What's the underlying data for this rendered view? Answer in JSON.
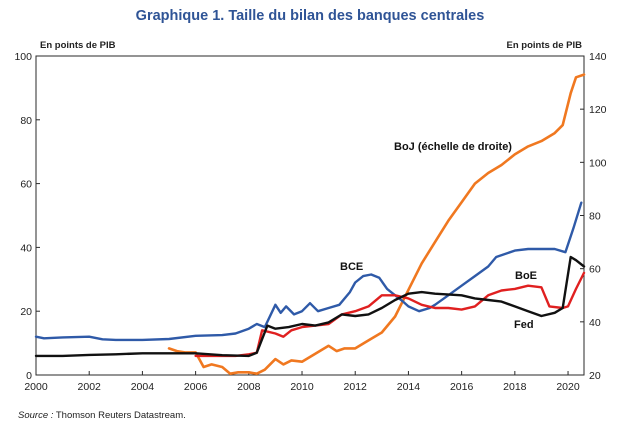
{
  "chart_data": {
    "type": "line",
    "title": "Graphique 1. Taille du bilan des banques centrales",
    "ylabel_left": "En points de PIB",
    "ylabel_right": "En points de PIB",
    "ylim_left": [
      0,
      100
    ],
    "ylim_right": [
      20,
      140
    ],
    "xlim": [
      2000,
      2020.6
    ],
    "x_ticks": [
      "2000",
      "2002",
      "2004",
      "2006",
      "2008",
      "2010",
      "2012",
      "2014",
      "2016",
      "2018",
      "2020"
    ],
    "y_left_ticks": [
      "0",
      "20",
      "40",
      "60",
      "80",
      "100"
    ],
    "y_right_ticks": [
      "20",
      "40",
      "60",
      "80",
      "100",
      "120",
      "140"
    ],
    "grid": false,
    "series": [
      {
        "name": "BCE",
        "axis": "left",
        "color": "#2f5aa8",
        "points": [
          [
            2000,
            12
          ],
          [
            2000.3,
            11.5
          ],
          [
            2001,
            11.8
          ],
          [
            2002,
            12
          ],
          [
            2002.5,
            11.2
          ],
          [
            2003,
            11
          ],
          [
            2004,
            11
          ],
          [
            2005,
            11.3
          ],
          [
            2006,
            12.3
          ],
          [
            2007,
            12.5
          ],
          [
            2007.5,
            13
          ],
          [
            2008,
            14.5
          ],
          [
            2008.3,
            16
          ],
          [
            2008.6,
            15
          ],
          [
            2009,
            22
          ],
          [
            2009.2,
            19.5
          ],
          [
            2009.4,
            21.5
          ],
          [
            2009.7,
            19
          ],
          [
            2010,
            20
          ],
          [
            2010.3,
            22.5
          ],
          [
            2010.6,
            20
          ],
          [
            2011,
            21
          ],
          [
            2011.4,
            22
          ],
          [
            2011.8,
            26
          ],
          [
            2012,
            29
          ],
          [
            2012.3,
            31
          ],
          [
            2012.6,
            31.5
          ],
          [
            2012.9,
            30.5
          ],
          [
            2013.2,
            27
          ],
          [
            2013.5,
            25
          ],
          [
            2013.8,
            23
          ],
          [
            2014,
            21.5
          ],
          [
            2014.4,
            20
          ],
          [
            2014.8,
            21
          ],
          [
            2015,
            22
          ],
          [
            2015.5,
            25
          ],
          [
            2016,
            28
          ],
          [
            2016.5,
            31
          ],
          [
            2017,
            34
          ],
          [
            2017.3,
            37
          ],
          [
            2018,
            39
          ],
          [
            2018.5,
            39.5
          ],
          [
            2019,
            39.5
          ],
          [
            2019.5,
            39.5
          ],
          [
            2019.9,
            38.5
          ],
          [
            2020.2,
            46
          ],
          [
            2020.5,
            54
          ]
        ]
      },
      {
        "name": "BoE",
        "axis": "left",
        "color": "#e02020",
        "points": [
          [
            2006,
            6
          ],
          [
            2007,
            6
          ],
          [
            2007.5,
            6
          ],
          [
            2008,
            6.5
          ],
          [
            2008.3,
            7
          ],
          [
            2008.5,
            14
          ],
          [
            2009,
            13
          ],
          [
            2009.3,
            12
          ],
          [
            2009.6,
            14
          ],
          [
            2010,
            15
          ],
          [
            2010.5,
            15.5
          ],
          [
            2011,
            16
          ],
          [
            2011.5,
            19
          ],
          [
            2012,
            20
          ],
          [
            2012.5,
            21.5
          ],
          [
            2013,
            25
          ],
          [
            2013.5,
            25
          ],
          [
            2014,
            24
          ],
          [
            2014.5,
            22
          ],
          [
            2015,
            21
          ],
          [
            2015.5,
            21
          ],
          [
            2016,
            20.5
          ],
          [
            2016.5,
            21.5
          ],
          [
            2017,
            25
          ],
          [
            2017.5,
            26.5
          ],
          [
            2018,
            27
          ],
          [
            2018.5,
            28
          ],
          [
            2019,
            27.5
          ],
          [
            2019.3,
            21.5
          ],
          [
            2019.8,
            21
          ],
          [
            2020,
            21.5
          ],
          [
            2020.3,
            27
          ],
          [
            2020.6,
            32
          ]
        ]
      },
      {
        "name": "Fed",
        "axis": "left",
        "color": "#111111",
        "points": [
          [
            2000,
            6
          ],
          [
            2001,
            6
          ],
          [
            2002,
            6.3
          ],
          [
            2003,
            6.5
          ],
          [
            2004,
            6.8
          ],
          [
            2005,
            6.8
          ],
          [
            2006,
            6.8
          ],
          [
            2007,
            6.2
          ],
          [
            2008,
            6
          ],
          [
            2008.3,
            7
          ],
          [
            2008.7,
            15.5
          ],
          [
            2009,
            14.5
          ],
          [
            2009.5,
            15
          ],
          [
            2010,
            16
          ],
          [
            2010.5,
            15.5
          ],
          [
            2011,
            16.5
          ],
          [
            2011.5,
            19
          ],
          [
            2012,
            18.5
          ],
          [
            2012.5,
            19
          ],
          [
            2013,
            21
          ],
          [
            2013.5,
            23.5
          ],
          [
            2014,
            25.5
          ],
          [
            2014.5,
            26
          ],
          [
            2015,
            25.5
          ],
          [
            2016,
            25
          ],
          [
            2016.5,
            24
          ],
          [
            2017,
            23.5
          ],
          [
            2017.5,
            23
          ],
          [
            2018,
            21.5
          ],
          [
            2018.5,
            20
          ],
          [
            2019,
            18.5
          ],
          [
            2019.5,
            19.5
          ],
          [
            2019.8,
            21
          ],
          [
            2020.1,
            37
          ],
          [
            2020.3,
            36
          ],
          [
            2020.6,
            34
          ]
        ]
      },
      {
        "name": "BoJ (échelle de droite)",
        "axis": "right",
        "color": "#f07820",
        "points": [
          [
            2005,
            30
          ],
          [
            2005.3,
            29
          ],
          [
            2005.6,
            28.5
          ],
          [
            2006,
            28.5
          ],
          [
            2006.3,
            23
          ],
          [
            2006.6,
            24
          ],
          [
            2007,
            23
          ],
          [
            2007.3,
            20.5
          ],
          [
            2007.6,
            21
          ],
          [
            2008,
            21
          ],
          [
            2008.3,
            20.5
          ],
          [
            2008.6,
            22
          ],
          [
            2009,
            26
          ],
          [
            2009.3,
            24
          ],
          [
            2009.6,
            25.5
          ],
          [
            2010,
            25
          ],
          [
            2010.5,
            28
          ],
          [
            2011,
            31
          ],
          [
            2011.3,
            29
          ],
          [
            2011.6,
            30
          ],
          [
            2012,
            30
          ],
          [
            2012.5,
            33
          ],
          [
            2013,
            36
          ],
          [
            2013.5,
            42
          ],
          [
            2014,
            52
          ],
          [
            2014.5,
            62
          ],
          [
            2015,
            70
          ],
          [
            2015.5,
            78
          ],
          [
            2016,
            85
          ],
          [
            2016.5,
            92
          ],
          [
            2017,
            96
          ],
          [
            2017.5,
            99
          ],
          [
            2018,
            103
          ],
          [
            2018.5,
            106
          ],
          [
            2019,
            108
          ],
          [
            2019.5,
            111
          ],
          [
            2019.8,
            114
          ],
          [
            2020.1,
            126
          ],
          [
            2020.3,
            132
          ],
          [
            2020.6,
            133
          ]
        ]
      }
    ],
    "source_label": "Source :",
    "source_text": "Thomson Reuters Datastream."
  }
}
